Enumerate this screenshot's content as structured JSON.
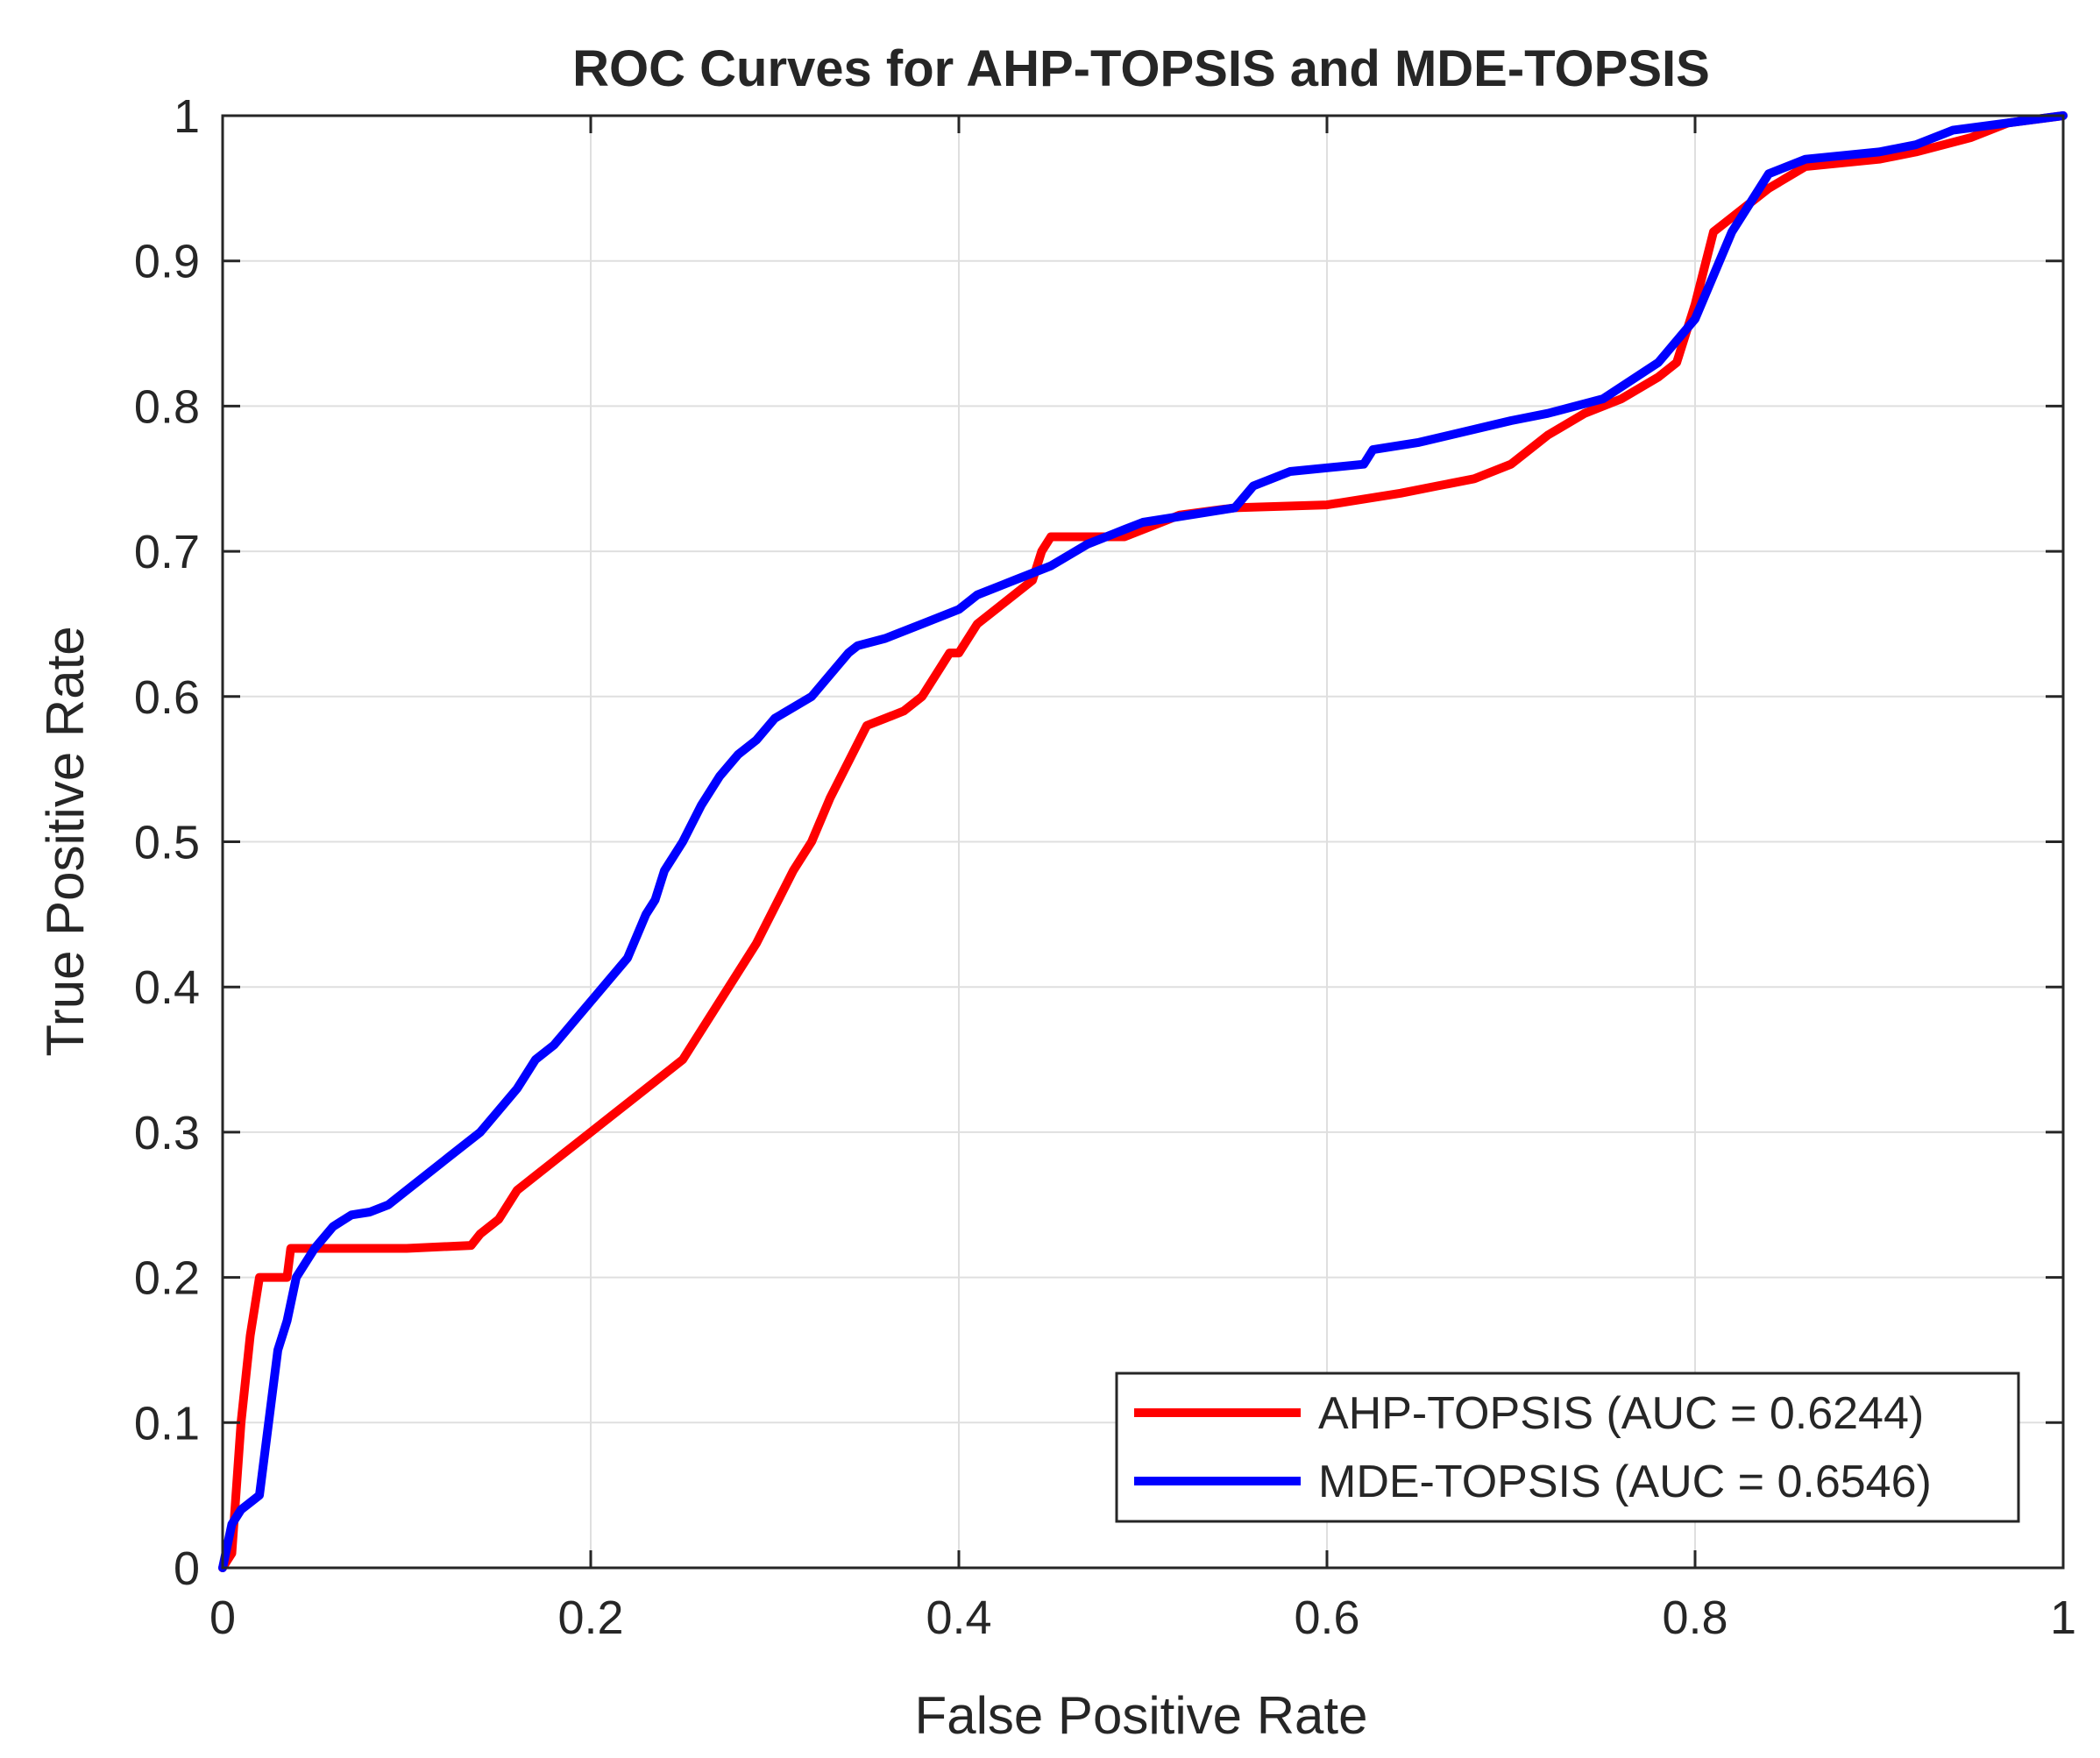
{
  "chart_data": {
    "type": "line",
    "title": "ROC Curves for AHP-TOPSIS and MDE-TOPSIS",
    "xlabel": "False Positive Rate",
    "ylabel": "True Positive Rate",
    "xlim": [
      0,
      1
    ],
    "ylim": [
      0,
      1
    ],
    "grid": true,
    "x_ticks": [
      0,
      0.2,
      0.4,
      0.6,
      0.8,
      1
    ],
    "x_tick_labels": [
      "0",
      "0.2",
      "0.4",
      "0.6",
      "0.8",
      "1"
    ],
    "y_ticks": [
      0,
      0.1,
      0.2,
      0.3,
      0.4,
      0.5,
      0.6,
      0.7,
      0.8,
      0.9,
      1
    ],
    "y_tick_labels": [
      "0",
      "0.1",
      "0.2",
      "0.3",
      "0.4",
      "0.5",
      "0.6",
      "0.7",
      "0.8",
      "0.9",
      "1"
    ],
    "legend_position": "bottom-right",
    "series": [
      {
        "name": "AHP-TOPSIS (AUC = 0.6244)",
        "color": "#ff0000",
        "x": [
          0,
          0.005,
          0.01,
          0.015,
          0.02,
          0.025,
          0.035,
          0.037,
          0.04,
          0.06,
          0.1,
          0.135,
          0.14,
          0.15,
          0.16,
          0.17,
          0.18,
          0.2,
          0.22,
          0.25,
          0.27,
          0.29,
          0.31,
          0.32,
          0.33,
          0.35,
          0.36,
          0.37,
          0.38,
          0.39,
          0.395,
          0.4,
          0.41,
          0.43,
          0.44,
          0.445,
          0.45,
          0.47,
          0.49,
          0.5,
          0.51,
          0.52,
          0.55,
          0.6,
          0.64,
          0.66,
          0.68,
          0.7,
          0.72,
          0.74,
          0.76,
          0.78,
          0.79,
          0.795,
          0.8,
          0.81,
          0.82,
          0.84,
          0.86,
          0.9,
          0.92,
          0.95,
          0.97,
          1
        ],
        "y": [
          0,
          0.01,
          0.1,
          0.16,
          0.2,
          0.2,
          0.2,
          0.22,
          0.22,
          0.22,
          0.22,
          0.222,
          0.23,
          0.24,
          0.26,
          0.27,
          0.28,
          0.3,
          0.32,
          0.35,
          0.39,
          0.43,
          0.48,
          0.5,
          0.53,
          0.58,
          0.585,
          0.59,
          0.6,
          0.62,
          0.63,
          0.63,
          0.65,
          0.67,
          0.68,
          0.7,
          0.71,
          0.71,
          0.71,
          0.715,
          0.72,
          0.725,
          0.73,
          0.732,
          0.74,
          0.745,
          0.75,
          0.76,
          0.78,
          0.795,
          0.805,
          0.82,
          0.83,
          0.85,
          0.87,
          0.92,
          0.93,
          0.95,
          0.965,
          0.97,
          0.975,
          0.985,
          0.995,
          1.0
        ]
      },
      {
        "name": "MDE-TOPSIS (AUC = 0.6546)",
        "color": "#0000ff",
        "x": [
          0,
          0.005,
          0.01,
          0.02,
          0.025,
          0.03,
          0.035,
          0.04,
          0.05,
          0.06,
          0.07,
          0.08,
          0.09,
          0.1,
          0.12,
          0.14,
          0.16,
          0.17,
          0.18,
          0.2,
          0.22,
          0.23,
          0.235,
          0.24,
          0.25,
          0.26,
          0.27,
          0.28,
          0.29,
          0.3,
          0.32,
          0.34,
          0.345,
          0.36,
          0.38,
          0.4,
          0.41,
          0.43,
          0.45,
          0.47,
          0.49,
          0.5,
          0.55,
          0.56,
          0.58,
          0.62,
          0.625,
          0.65,
          0.7,
          0.72,
          0.75,
          0.78,
          0.79,
          0.8,
          0.82,
          0.84,
          0.86,
          0.9,
          0.92,
          0.94,
          1
        ],
        "y": [
          0,
          0.03,
          0.04,
          0.05,
          0.1,
          0.15,
          0.17,
          0.2,
          0.22,
          0.235,
          0.243,
          0.245,
          0.25,
          0.26,
          0.28,
          0.3,
          0.33,
          0.35,
          0.36,
          0.39,
          0.42,
          0.45,
          0.46,
          0.48,
          0.5,
          0.525,
          0.545,
          0.56,
          0.57,
          0.585,
          0.6,
          0.63,
          0.635,
          0.64,
          0.65,
          0.66,
          0.67,
          0.68,
          0.69,
          0.705,
          0.715,
          0.72,
          0.73,
          0.745,
          0.755,
          0.76,
          0.77,
          0.775,
          0.79,
          0.795,
          0.805,
          0.83,
          0.845,
          0.86,
          0.92,
          0.96,
          0.97,
          0.975,
          0.98,
          0.99,
          1.0
        ]
      }
    ]
  }
}
